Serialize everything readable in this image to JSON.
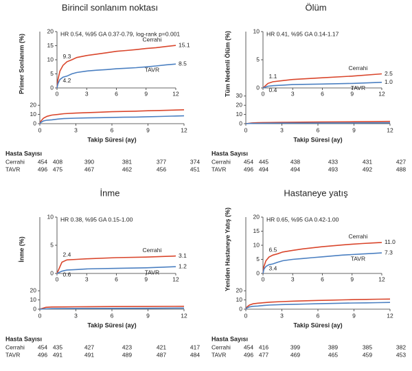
{
  "chart_data": [
    {
      "type": "line",
      "title": "Birincil sonlanım noktası",
      "y_label": "Primer Sonlanım (%)",
      "x_label": "Takip Süresi (ay)",
      "xlim": [
        0,
        12
      ],
      "xticks": [
        0,
        3,
        6,
        9,
        12
      ],
      "ylim": [
        0,
        100
      ],
      "yticks": [
        0,
        10,
        20
      ],
      "inset": {
        "annotation": "HR 0.54, %95 GA 0.37-0.79, log-rank p=0.001",
        "ylim": [
          0,
          20
        ],
        "yticks": [
          0,
          5,
          10,
          15,
          20
        ],
        "xticks": [
          0,
          3,
          6,
          9,
          12
        ]
      },
      "series": [
        {
          "name": "Cerrahi",
          "color": "#d9452b",
          "x": [
            0,
            0.1,
            0.3,
            0.6,
            1,
            1.5,
            2,
            3,
            4,
            5,
            6,
            7,
            8,
            9,
            10,
            11,
            12
          ],
          "values": [
            0,
            3,
            6,
            8,
            9.3,
            10,
            10.8,
            11.5,
            12,
            12.5,
            13,
            13.3,
            13.6,
            14,
            14.3,
            14.7,
            15.1
          ],
          "point_labels": [
            {
              "x": 1,
              "value": 9.3
            },
            {
              "x": 12,
              "value": 15.1
            }
          ]
        },
        {
          "name": "TAVR",
          "color": "#4a7fc1",
          "x": [
            0,
            0.1,
            0.3,
            0.6,
            1,
            1.5,
            2,
            3,
            4,
            5,
            6,
            7,
            8,
            9,
            10,
            11,
            12
          ],
          "values": [
            0,
            1.5,
            3,
            3.8,
            4.2,
            5,
            5.5,
            6,
            6.3,
            6.5,
            6.8,
            7,
            7.2,
            7.5,
            7.8,
            8.2,
            8.5
          ],
          "point_labels": [
            {
              "x": 1,
              "value": 4.2
            },
            {
              "x": 12,
              "value": 8.5
            }
          ]
        }
      ],
      "risk_table": {
        "title": "Hasta Sayısı",
        "rows": [
          {
            "name": "Cerrahi",
            "values": [
              454,
              408,
              390,
              381,
              377,
              374
            ]
          },
          {
            "name": "TAVR",
            "values": [
              496,
              475,
              467,
              462,
              456,
              451
            ]
          }
        ]
      }
    },
    {
      "type": "line",
      "title": "Ölüm",
      "y_label": "Tüm Nedenli Ölüm (%)",
      "x_label": "Takip Süresi (ay)",
      "xlim": [
        0,
        12
      ],
      "xticks": [
        0,
        3,
        6,
        9,
        12
      ],
      "ylim": [
        0,
        100
      ],
      "yticks": [
        0,
        10,
        20,
        30
      ],
      "inset": {
        "annotation": "HR 0.41, %95 GA 0.14-1.17",
        "ylim": [
          0,
          10
        ],
        "yticks": [
          0,
          5,
          10
        ],
        "xticks": [
          0,
          3,
          6,
          9,
          12
        ]
      },
      "series": [
        {
          "name": "Cerrahi",
          "color": "#d9452b",
          "x": [
            0,
            0.5,
            1,
            2,
            3,
            6,
            9,
            12
          ],
          "values": [
            0,
            0.8,
            1.1,
            1.3,
            1.5,
            1.8,
            2.1,
            2.5
          ],
          "point_labels": [
            {
              "x": 1,
              "value": 1.1
            },
            {
              "x": 12,
              "value": 2.5
            }
          ]
        },
        {
          "name": "TAVR",
          "color": "#4a7fc1",
          "x": [
            0,
            0.5,
            1,
            2,
            3,
            6,
            9,
            12
          ],
          "values": [
            0,
            0.3,
            0.4,
            0.5,
            0.6,
            0.7,
            0.8,
            1.0
          ],
          "point_labels": [
            {
              "x": 1,
              "value": 0.4
            },
            {
              "x": 12,
              "value": 1,
              "label": "1.0"
            }
          ]
        }
      ],
      "risk_table": {
        "title": "Hasta Sayısı",
        "rows": [
          {
            "name": "Cerrahi",
            "values": [
              454,
              445,
              438,
              433,
              431,
              427
            ]
          },
          {
            "name": "TAVR",
            "values": [
              496,
              494,
              494,
              493,
              492,
              488
            ]
          }
        ]
      }
    },
    {
      "type": "line",
      "title": "İnme",
      "y_label": "İnme (%)",
      "x_label": "Takip Süresi (ay)",
      "xlim": [
        0,
        12
      ],
      "xticks": [
        0,
        3,
        6,
        9,
        12
      ],
      "ylim": [
        0,
        100
      ],
      "yticks": [
        0,
        10,
        20
      ],
      "inset": {
        "annotation": "HR 0.38, %95 GA 0.15-1.00",
        "ylim": [
          0,
          10
        ],
        "yticks": [
          0,
          5,
          10
        ],
        "xticks": [
          0,
          3,
          6,
          9,
          12
        ]
      },
      "series": [
        {
          "name": "Cerrahi",
          "color": "#d9452b",
          "x": [
            0,
            0.5,
            1,
            2,
            3,
            6,
            9,
            12
          ],
          "values": [
            0,
            2,
            2.4,
            2.5,
            2.6,
            2.8,
            2.9,
            3.1
          ],
          "point_labels": [
            {
              "x": 1,
              "value": 2.4
            },
            {
              "x": 12,
              "value": 3.1
            }
          ]
        },
        {
          "name": "TAVR",
          "color": "#4a7fc1",
          "x": [
            0,
            0.5,
            1,
            2,
            3,
            6,
            9,
            12
          ],
          "values": [
            0,
            0.4,
            0.6,
            0.7,
            0.8,
            0.9,
            1.0,
            1.2
          ],
          "point_labels": [
            {
              "x": 1,
              "value": 0.6
            },
            {
              "x": 12,
              "value": 1.2
            }
          ]
        }
      ],
      "risk_table": {
        "title": "Hasta Sayısı",
        "rows": [
          {
            "name": "Cerrahi",
            "values": [
              454,
              435,
              427,
              423,
              421,
              417
            ]
          },
          {
            "name": "TAVR",
            "values": [
              496,
              491,
              491,
              489,
              487,
              484
            ]
          }
        ]
      }
    },
    {
      "type": "line",
      "title": "Hastaneye yatış",
      "y_label": "Yeniden Hastaneye Yatış (%)",
      "x_label": "Takip Süresi (ay)",
      "xlim": [
        0,
        12
      ],
      "xticks": [
        0,
        3,
        6,
        9,
        12
      ],
      "ylim": [
        0,
        100
      ],
      "yticks": [
        0,
        10,
        20
      ],
      "inset": {
        "annotation": "HR 0.65, %95 GA 0.42-1.00",
        "ylim": [
          0,
          20
        ],
        "yticks": [
          0,
          5,
          10,
          15,
          20
        ],
        "xticks": [
          0,
          3,
          6,
          9,
          12
        ]
      },
      "series": [
        {
          "name": "Cerrahi",
          "color": "#d9452b",
          "x": [
            0,
            0.1,
            0.3,
            0.6,
            1,
            1.5,
            2,
            3,
            4,
            5,
            6,
            7,
            8,
            9,
            10,
            11,
            12
          ],
          "values": [
            0,
            2.5,
            4.5,
            5.8,
            6.5,
            7,
            7.6,
            8.2,
            8.7,
            9.1,
            9.5,
            9.8,
            10.1,
            10.4,
            10.6,
            10.8,
            11
          ],
          "point_labels": [
            {
              "x": 1,
              "value": 6.5
            },
            {
              "x": 12,
              "value": 11,
              "label": "11.0"
            }
          ]
        },
        {
          "name": "TAVR",
          "color": "#4a7fc1",
          "x": [
            0,
            0.1,
            0.3,
            0.6,
            1,
            1.5,
            2,
            3,
            4,
            5,
            6,
            7,
            8,
            9,
            10,
            11,
            12
          ],
          "values": [
            0,
            1.5,
            2.5,
            3.1,
            3.4,
            4,
            4.5,
            5,
            5.3,
            5.6,
            5.9,
            6.2,
            6.5,
            6.7,
            6.9,
            7.1,
            7.3
          ],
          "point_labels": [
            {
              "x": 1,
              "value": 3.4
            },
            {
              "x": 12,
              "value": 7.3
            }
          ]
        }
      ],
      "risk_table": {
        "title": "Hasta Sayısı",
        "rows": [
          {
            "name": "Cerrahi",
            "values": [
              454,
              416,
              399,
              389,
              385,
              382
            ]
          },
          {
            "name": "TAVR",
            "values": [
              496,
              477,
              469,
              465,
              459,
              453
            ]
          }
        ]
      }
    }
  ]
}
